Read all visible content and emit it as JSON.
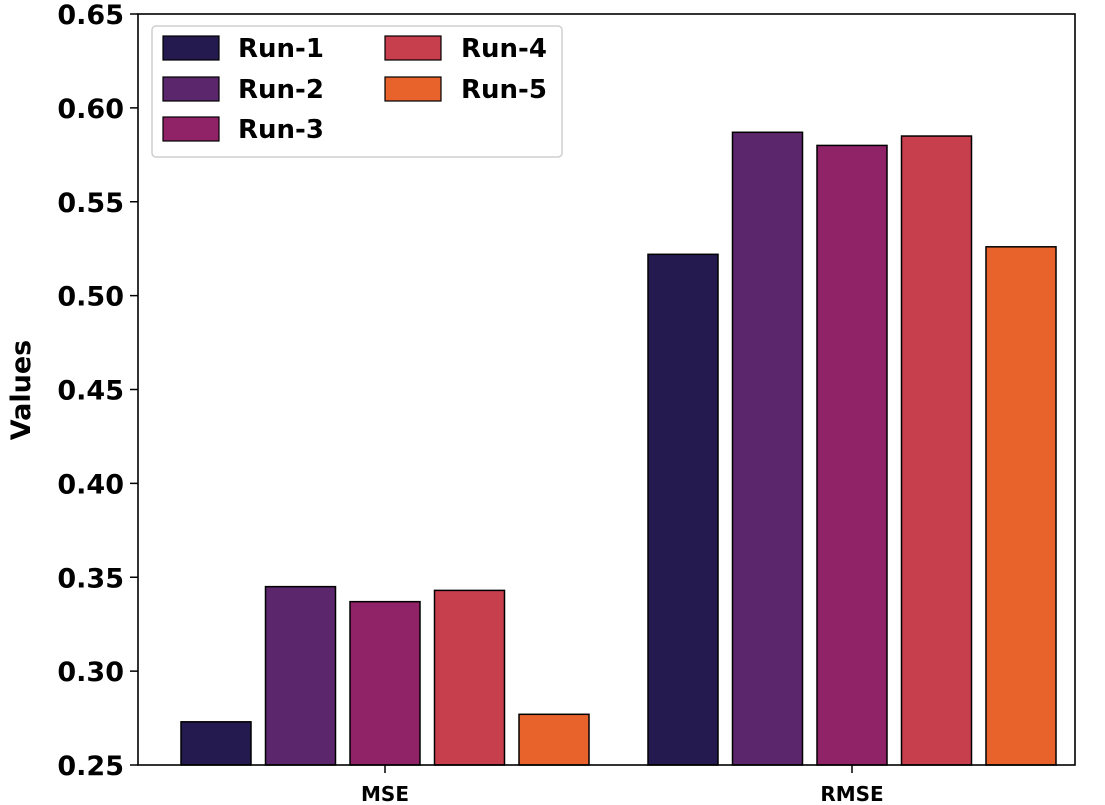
{
  "chart_data": {
    "type": "bar",
    "title": "",
    "xlabel": "",
    "ylabel": "Values",
    "categories": [
      "MSE",
      "RMSE"
    ],
    "ylim": [
      0.25,
      0.65
    ],
    "yticks": [
      "0.25",
      "0.30",
      "0.35",
      "0.40",
      "0.45",
      "0.50",
      "0.55",
      "0.60",
      "0.65"
    ],
    "grid": false,
    "legend_position": "top-left",
    "series": [
      {
        "name": "Run-1",
        "color": "#241a4f",
        "values": [
          0.273,
          0.522
        ]
      },
      {
        "name": "Run-2",
        "color": "#5c266c",
        "values": [
          0.345,
          0.587
        ]
      },
      {
        "name": "Run-3",
        "color": "#902268",
        "values": [
          0.337,
          0.58
        ]
      },
      {
        "name": "Run-4",
        "color": "#c73e4c",
        "values": [
          0.343,
          0.585
        ]
      },
      {
        "name": "Run-5",
        "color": "#e8622c",
        "values": [
          0.277,
          0.526
        ]
      }
    ]
  }
}
